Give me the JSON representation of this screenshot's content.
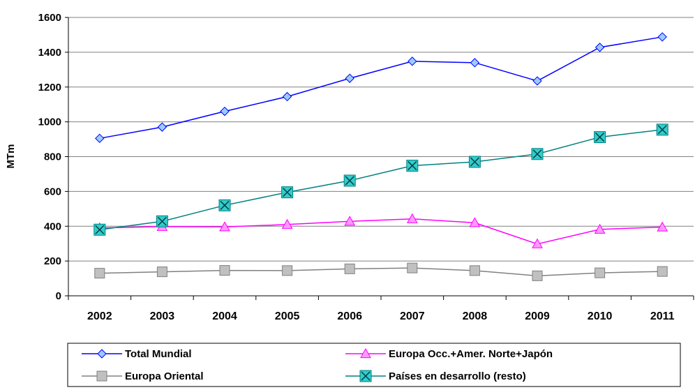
{
  "chart_data": {
    "type": "line",
    "title": "",
    "xlabel": "",
    "ylabel": "MTm",
    "ylim": [
      0,
      1600
    ],
    "yticks": [
      0,
      200,
      400,
      600,
      800,
      1000,
      1200,
      1400,
      1600
    ],
    "grid": true,
    "legend_position": "bottom",
    "categories": [
      "2002",
      "2003",
      "2004",
      "2005",
      "2006",
      "2007",
      "2008",
      "2009",
      "2010",
      "2011"
    ],
    "series": [
      {
        "name": "Total Mundial",
        "color": "#0000FF",
        "marker": "diamond",
        "marker_fill": "#99CCFF",
        "values": [
          905,
          970,
          1060,
          1145,
          1250,
          1348,
          1340,
          1235,
          1428,
          1488
        ]
      },
      {
        "name": "Europa Occ.+Amer. Norte+Japón",
        "color": "#FF00FF",
        "marker": "triangle",
        "marker_fill": "#FF99FF",
        "values": [
          390,
          398,
          396,
          410,
          428,
          442,
          420,
          298,
          382,
          395
        ]
      },
      {
        "name": "Europa Oriental",
        "color": "#808080",
        "marker": "square",
        "marker_fill": "#C0C0C0",
        "values": [
          130,
          138,
          146,
          145,
          155,
          160,
          145,
          115,
          132,
          140
        ]
      },
      {
        "name": "Países en desarrollo (resto)",
        "color": "#008080",
        "marker": "x-square",
        "marker_fill": "#33CCCC",
        "values": [
          380,
          428,
          520,
          595,
          662,
          748,
          770,
          815,
          912,
          955
        ]
      }
    ]
  }
}
